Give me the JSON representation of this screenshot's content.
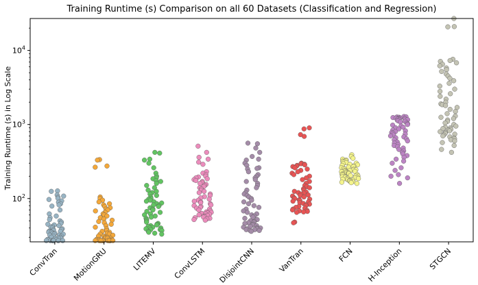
{
  "chart_data": {
    "type": "scatter",
    "subtype": "strip",
    "title": "Training Runtime (s) Comparison on all 60 Datasets (Classification and Regression)",
    "ylabel": "Training Runtime (s) in Log Scale",
    "xlabel": "",
    "yscale": "log",
    "ylim": [
      26,
      27000
    ],
    "yticks": [
      {
        "value": 100,
        "base": "10",
        "exp": "2"
      },
      {
        "value": 1000,
        "base": "10",
        "exp": "3"
      },
      {
        "value": 10000,
        "base": "10",
        "exp": "4"
      }
    ],
    "categories": [
      "ConvTran",
      "MotionGRU",
      "LITEMV",
      "ConvLSTM",
      "DisjointCNN",
      "VanTran",
      "FCN",
      "H-Inception",
      "STGCN"
    ],
    "colors": [
      "#98b4c4",
      "#f4a83a",
      "#62c462",
      "#ec8cbc",
      "#a48ca8",
      "#e85454",
      "#f4f48c",
      "#bc84c4",
      "#c4c4b4"
    ],
    "series": [
      {
        "name": "ConvTran",
        "values": [
          127,
          125,
          112,
          108,
          104,
          101,
          97,
          93,
          89,
          85,
          82,
          79,
          70,
          62,
          58,
          55,
          52,
          50,
          48,
          46,
          45,
          44,
          43,
          42,
          41,
          40,
          39,
          38,
          38,
          37,
          36,
          36,
          35,
          35,
          34,
          34,
          33,
          33,
          32,
          32,
          31,
          31,
          30,
          30,
          29,
          29,
          29,
          28,
          28,
          28,
          27,
          27,
          27,
          27,
          27,
          27,
          27,
          27,
          27,
          27
        ]
      },
      {
        "name": "MotionGRU",
        "values": [
          335,
          330,
          275,
          265,
          105,
          100,
          95,
          90,
          85,
          82,
          78,
          75,
          72,
          70,
          68,
          65,
          62,
          60,
          58,
          55,
          53,
          51,
          49,
          47,
          45,
          43,
          41,
          39,
          37,
          36,
          35,
          34,
          33,
          33,
          32,
          31,
          31,
          30,
          30,
          29,
          29,
          29,
          28,
          28,
          28,
          28,
          27,
          27,
          27,
          27,
          27,
          27,
          27,
          27,
          27,
          27,
          27,
          27,
          27,
          27
        ]
      },
      {
        "name": "LITEMV",
        "values": [
          420,
          410,
          340,
          330,
          300,
          260,
          220,
          200,
          190,
          185,
          175,
          170,
          160,
          150,
          140,
          130,
          125,
          120,
          115,
          110,
          105,
          100,
          98,
          95,
          92,
          90,
          87,
          85,
          82,
          80,
          78,
          75,
          72,
          70,
          67,
          65,
          62,
          60,
          58,
          56,
          54,
          52,
          50,
          48,
          46,
          45,
          44,
          43,
          42,
          41,
          40,
          40,
          39,
          38,
          38,
          37,
          36,
          35,
          34,
          33
        ]
      },
      {
        "name": "ConvLSTM",
        "values": [
          510,
          420,
          360,
          340,
          310,
          290,
          230,
          220,
          210,
          200,
          195,
          190,
          185,
          180,
          175,
          170,
          165,
          160,
          155,
          150,
          145,
          140,
          135,
          130,
          125,
          120,
          115,
          110,
          106,
          102,
          98,
          95,
          92,
          90,
          88,
          85,
          82,
          80,
          78,
          76,
          74,
          72,
          70,
          68,
          66,
          65,
          64,
          63,
          62,
          61,
          60,
          59,
          58,
          57,
          56,
          55,
          54,
          53,
          52,
          51
        ]
      },
      {
        "name": "DisjointCNN",
        "values": [
          560,
          550,
          480,
          420,
          370,
          340,
          330,
          300,
          280,
          260,
          255,
          250,
          230,
          210,
          200,
          190,
          180,
          170,
          160,
          150,
          140,
          130,
          120,
          115,
          110,
          105,
          100,
          95,
          90,
          85,
          80,
          76,
          72,
          68,
          65,
          62,
          60,
          58,
          56,
          54,
          52,
          50,
          49,
          48,
          47,
          46,
          45,
          44,
          43,
          42,
          41,
          40,
          40,
          39,
          39,
          38,
          38,
          37,
          37,
          36
        ]
      },
      {
        "name": "VanTran",
        "values": [
          900,
          870,
          730,
          690,
          300,
          295,
          290,
          285,
          280,
          275,
          270,
          260,
          250,
          240,
          230,
          220,
          210,
          200,
          190,
          180,
          170,
          160,
          150,
          145,
          140,
          135,
          130,
          125,
          122,
          120,
          118,
          115,
          112,
          110,
          108,
          105,
          102,
          100,
          98,
          96,
          94,
          92,
          90,
          88,
          86,
          84,
          82,
          80,
          78,
          76,
          74,
          72,
          70,
          69,
          68,
          67,
          66,
          65,
          48,
          47
        ]
      },
      {
        "name": "FCN",
        "values": [
          390,
          370,
          350,
          340,
          330,
          325,
          320,
          315,
          310,
          305,
          300,
          295,
          290,
          285,
          280,
          275,
          270,
          265,
          260,
          255,
          250,
          248,
          245,
          242,
          240,
          238,
          235,
          232,
          230,
          228,
          225,
          222,
          220,
          218,
          215,
          212,
          210,
          208,
          205,
          202,
          200,
          198,
          196,
          194,
          192,
          190,
          188,
          186,
          184,
          182,
          180,
          178,
          176,
          174,
          172,
          170,
          168,
          166,
          164,
          160
        ]
      },
      {
        "name": "H-Inception",
        "values": [
          1280,
          1270,
          1260,
          1250,
          1240,
          1230,
          1220,
          1210,
          1200,
          1190,
          1180,
          1170,
          1160,
          1150,
          1140,
          1120,
          1100,
          1080,
          1050,
          1020,
          1000,
          980,
          950,
          920,
          900,
          870,
          840,
          820,
          800,
          780,
          760,
          740,
          720,
          700,
          680,
          660,
          640,
          620,
          600,
          580,
          560,
          540,
          520,
          500,
          480,
          460,
          440,
          420,
          400,
          380,
          360,
          340,
          320,
          300,
          260,
          240,
          210,
          200,
          190,
          160
        ]
      },
      {
        "name": "STGCN",
        "values": [
          27000,
          21000,
          20800,
          7600,
          7300,
          7100,
          6800,
          6500,
          6200,
          5800,
          5500,
          5200,
          4800,
          4500,
          4200,
          3900,
          3600,
          3300,
          3000,
          2800,
          2600,
          2400,
          2200,
          2000,
          1900,
          1850,
          1800,
          1700,
          1600,
          1500,
          1400,
          1300,
          1250,
          1200,
          1150,
          1100,
          1050,
          1000,
          950,
          920,
          900,
          880,
          860,
          840,
          820,
          800,
          780,
          760,
          740,
          720,
          700,
          680,
          660,
          640,
          620,
          600,
          570,
          520,
          460,
          420
        ]
      }
    ]
  }
}
